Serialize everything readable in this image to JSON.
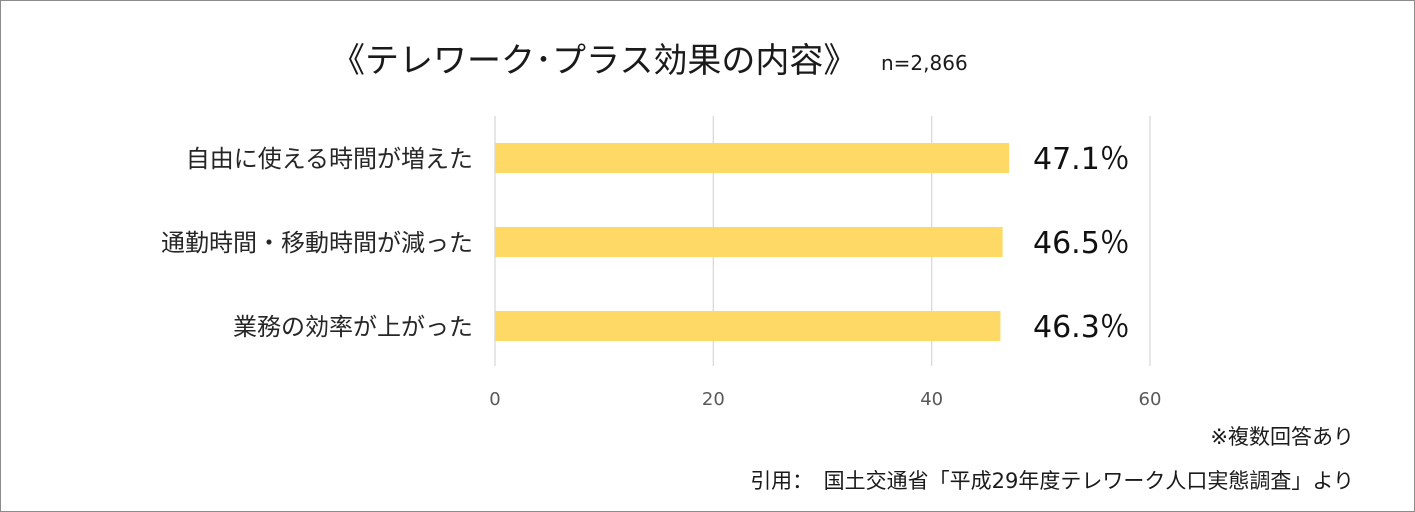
{
  "chart_data": {
    "type": "bar",
    "orientation": "horizontal",
    "title": "《テレワーク･プラス効果の内容》",
    "sample_size": "n=2,866",
    "categories": [
      "自由に使える時間が増えた",
      "通勤時間・移動時間が減った",
      "業務の効率が上がった"
    ],
    "values": [
      47.1,
      46.5,
      46.3
    ],
    "value_labels": [
      "47.1％",
      "46.5％",
      "46.3％"
    ],
    "xlim": [
      0,
      60
    ],
    "xticks": [
      0,
      20,
      40,
      60
    ],
    "grid": true,
    "bar_color": "#FFD966",
    "grid_color": "#d9d9d9",
    "note": "※複数回答あり",
    "source": "引用：　国土交通省「平成29年度テレワーク人口実態調査」より"
  }
}
